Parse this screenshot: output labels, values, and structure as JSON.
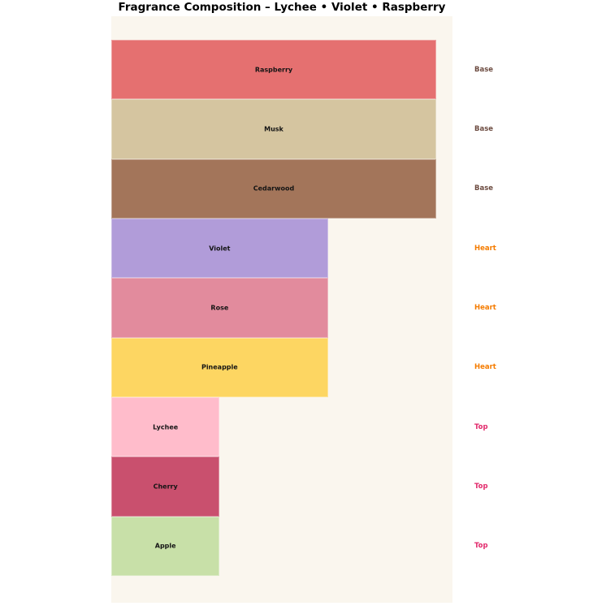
{
  "title": "Fragrance Composition – Lychee • Violet • Raspberry",
  "colors": {
    "figure_bg": "#ffffff",
    "plot_bg": "#faf6ee",
    "bar_label_text": "#141414",
    "title_text": "#000000"
  },
  "group_label_colors": {
    "Base": "#6d4c41",
    "Heart": "#f57c00",
    "Top": "#e2296b"
  },
  "chart_data": {
    "type": "bar",
    "orientation": "horizontal",
    "title": "Fragrance Composition – Lychee • Violet • Raspberry",
    "xlabel": "",
    "ylabel": "",
    "grid": false,
    "legend": "none",
    "axes_ticks_visible": false,
    "xlim": [
      0,
      31.5
    ],
    "categories": [
      "Raspberry",
      "Musk",
      "Cedarwood",
      "Violet",
      "Rose",
      "Pineapple",
      "Lychee",
      "Cherry",
      "Apple"
    ],
    "values": [
      30,
      30,
      30,
      20,
      20,
      20,
      10,
      10,
      10
    ],
    "groups": [
      "Base",
      "Base",
      "Base",
      "Heart",
      "Heart",
      "Heart",
      "Top",
      "Top",
      "Top"
    ],
    "bar_colors": [
      "#e57070",
      "#d5c5a0",
      "#a3755a",
      "#b19cd9",
      "#e28b9d",
      "#fdd662",
      "#ffbccb",
      "#c9506e",
      "#c8e0a8"
    ],
    "bar_labels_inside": true,
    "group_labels_right_margin": true
  }
}
